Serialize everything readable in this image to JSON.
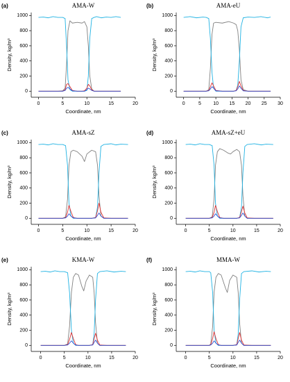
{
  "chart_data": [
    {
      "type": "line",
      "label": "(a)",
      "title": "AMA-W",
      "xlabel": "Coordinate, nm",
      "ylabel": "Density, kg/m³",
      "xlim": [
        -1.5,
        20
      ],
      "xticks": [
        0,
        5,
        10,
        15,
        20
      ],
      "ylim": [
        -80,
        1040
      ],
      "yticks": [
        0,
        200,
        400,
        600,
        800,
        1000
      ],
      "x": [
        0,
        1,
        2,
        3,
        4,
        5,
        5.5,
        5.8,
        6.1,
        6.5,
        7,
        8,
        9,
        9.5,
        10,
        10.3,
        10.6,
        11,
        11.5,
        12,
        13,
        14,
        15,
        16,
        17
      ],
      "series": [
        {
          "color": "#808080",
          "values": [
            0,
            0,
            0,
            0,
            0,
            5,
            40,
            350,
            800,
            930,
            900,
            910,
            900,
            920,
            850,
            600,
            200,
            30,
            0,
            0,
            0,
            0,
            0,
            0,
            0
          ]
        },
        {
          "color": "#1fb2e3",
          "values": [
            975,
            980,
            970,
            985,
            975,
            975,
            960,
            600,
            150,
            20,
            0,
            0,
            0,
            0,
            10,
            200,
            700,
            960,
            975,
            985,
            970,
            980,
            975,
            985,
            975
          ]
        },
        {
          "color": "#e03030",
          "values": [
            0,
            0,
            0,
            0,
            0,
            0,
            20,
            90,
            100,
            60,
            10,
            0,
            0,
            5,
            40,
            90,
            70,
            20,
            0,
            0,
            0,
            0,
            0,
            0,
            0
          ]
        },
        {
          "color": "#3050d0",
          "values": [
            0,
            0,
            0,
            0,
            0,
            0,
            10,
            40,
            50,
            30,
            5,
            0,
            0,
            0,
            20,
            40,
            30,
            10,
            0,
            0,
            0,
            0,
            0,
            0,
            0
          ]
        }
      ]
    },
    {
      "type": "line",
      "label": "(b)",
      "title": "AMA-eU",
      "xlabel": "Coordinate, nm",
      "ylabel": "Density, kg/m³",
      "xlim": [
        -2.3,
        30
      ],
      "xticks": [
        0,
        5,
        10,
        15,
        20,
        25,
        30
      ],
      "ylim": [
        -80,
        1040
      ],
      "yticks": [
        0,
        200,
        400,
        600,
        800,
        1000
      ],
      "x": [
        0,
        2,
        4,
        6,
        7,
        7.8,
        8.3,
        8.8,
        9.3,
        10,
        12,
        14,
        15.5,
        16.3,
        16.8,
        17.3,
        17.8,
        18.5,
        20,
        22,
        24,
        26,
        27
      ],
      "series": [
        {
          "color": "#808080",
          "values": [
            0,
            0,
            0,
            0,
            0,
            20,
            300,
            750,
            900,
            910,
            900,
            920,
            900,
            880,
            800,
            550,
            150,
            20,
            0,
            0,
            0,
            0,
            0
          ]
        },
        {
          "color": "#1fb2e3",
          "values": [
            975,
            985,
            970,
            980,
            975,
            960,
            700,
            250,
            40,
            0,
            0,
            0,
            0,
            10,
            80,
            400,
            850,
            970,
            980,
            975,
            985,
            970,
            980
          ]
        },
        {
          "color": "#e03030",
          "values": [
            0,
            0,
            0,
            0,
            0,
            10,
            60,
            110,
            70,
            10,
            0,
            0,
            0,
            10,
            60,
            130,
            70,
            10,
            0,
            0,
            0,
            0,
            0
          ]
        },
        {
          "color": "#3050d0",
          "values": [
            0,
            0,
            0,
            0,
            0,
            5,
            30,
            60,
            40,
            5,
            0,
            0,
            0,
            5,
            30,
            70,
            40,
            5,
            0,
            0,
            0,
            0,
            0
          ]
        }
      ]
    },
    {
      "type": "line",
      "label": "(c)",
      "title": "AMA-sZ",
      "xlabel": "Coordinate, nm",
      "ylabel": "Density, kg/m³",
      "xlim": [
        -1.5,
        20
      ],
      "xticks": [
        0,
        5,
        10,
        15,
        20
      ],
      "ylim": [
        -80,
        1040
      ],
      "yticks": [
        0,
        200,
        400,
        600,
        800,
        1000
      ],
      "x": [
        0,
        1,
        2,
        3,
        4,
        5,
        5.6,
        6.0,
        6.3,
        6.7,
        7.2,
        8,
        9,
        9.5,
        10,
        11,
        11.8,
        12.2,
        12.5,
        12.9,
        13.5,
        15,
        16,
        17,
        18.5
      ],
      "series": [
        {
          "color": "#808080",
          "values": [
            0,
            0,
            0,
            0,
            0,
            0,
            20,
            250,
            700,
            880,
            900,
            880,
            820,
            750,
            850,
            900,
            880,
            700,
            300,
            30,
            0,
            0,
            0,
            0,
            0
          ]
        },
        {
          "color": "#1fb2e3",
          "values": [
            975,
            980,
            970,
            985,
            975,
            975,
            960,
            700,
            200,
            30,
            0,
            0,
            0,
            0,
            0,
            0,
            10,
            150,
            600,
            950,
            975,
            985,
            970,
            980,
            975
          ]
        },
        {
          "color": "#e03030",
          "values": [
            0,
            0,
            0,
            0,
            0,
            0,
            10,
            80,
            170,
            90,
            10,
            0,
            0,
            0,
            0,
            0,
            10,
            100,
            200,
            80,
            5,
            0,
            0,
            0,
            0
          ]
        },
        {
          "color": "#3050d0",
          "values": [
            0,
            0,
            0,
            0,
            0,
            0,
            5,
            30,
            60,
            30,
            5,
            0,
            0,
            0,
            0,
            0,
            5,
            40,
            70,
            30,
            0,
            0,
            0,
            0,
            0
          ]
        }
      ]
    },
    {
      "type": "line",
      "label": "(d)",
      "title": "AMA-sZ+eU",
      "xlabel": "Coordinate, nm",
      "ylabel": "Density, kg/m³",
      "xlim": [
        -2,
        20
      ],
      "xticks": [
        0,
        5,
        10,
        15,
        20
      ],
      "ylim": [
        -80,
        1040
      ],
      "yticks": [
        0,
        200,
        400,
        600,
        800,
        1000
      ],
      "x": [
        0,
        1,
        2,
        3,
        4,
        5,
        5.6,
        6.0,
        6.3,
        6.7,
        7.2,
        8,
        9,
        9.5,
        10,
        10.8,
        11.4,
        11.8,
        12.1,
        12.5,
        13,
        14.5,
        16,
        17,
        18.5
      ],
      "series": [
        {
          "color": "#808080",
          "values": [
            0,
            0,
            0,
            0,
            0,
            0,
            20,
            250,
            700,
            880,
            920,
            900,
            860,
            850,
            880,
            910,
            880,
            700,
            300,
            30,
            0,
            0,
            0,
            0,
            0
          ]
        },
        {
          "color": "#1fb2e3",
          "values": [
            975,
            980,
            970,
            985,
            975,
            975,
            960,
            700,
            200,
            30,
            0,
            0,
            0,
            0,
            0,
            0,
            10,
            150,
            600,
            950,
            975,
            985,
            970,
            980,
            975
          ]
        },
        {
          "color": "#e03030",
          "values": [
            0,
            0,
            0,
            0,
            0,
            0,
            10,
            80,
            170,
            90,
            10,
            0,
            0,
            0,
            0,
            0,
            10,
            90,
            160,
            70,
            5,
            0,
            0,
            0,
            0
          ]
        },
        {
          "color": "#3050d0",
          "values": [
            0,
            0,
            0,
            0,
            0,
            0,
            5,
            30,
            60,
            30,
            5,
            0,
            0,
            0,
            0,
            0,
            5,
            40,
            70,
            30,
            0,
            0,
            0,
            0,
            0
          ]
        }
      ]
    },
    {
      "type": "line",
      "label": "(e)",
      "title": "KMA-W",
      "xlabel": "Coordinate, nm",
      "ylabel": "Density, kg/m³",
      "xlim": [
        -2,
        20
      ],
      "xticks": [
        0,
        5,
        10,
        15,
        20
      ],
      "ylim": [
        -80,
        1040
      ],
      "yticks": [
        0,
        200,
        400,
        600,
        800,
        1000
      ],
      "x": [
        0,
        1,
        2,
        3,
        4,
        5,
        5.7,
        6.1,
        6.5,
        6.9,
        7.4,
        8,
        8.7,
        9.1,
        9.6,
        10.3,
        11,
        11.3,
        11.6,
        12,
        12.5,
        14,
        15.5,
        17,
        18
      ],
      "series": [
        {
          "color": "#808080",
          "values": [
            0,
            0,
            0,
            0,
            0,
            0,
            20,
            250,
            700,
            900,
            950,
            930,
            780,
            720,
            850,
            930,
            900,
            700,
            300,
            30,
            0,
            0,
            0,
            0,
            0
          ]
        },
        {
          "color": "#1fb2e3",
          "values": [
            975,
            980,
            970,
            985,
            975,
            975,
            960,
            700,
            200,
            30,
            0,
            0,
            0,
            0,
            0,
            0,
            10,
            150,
            600,
            950,
            975,
            985,
            970,
            980,
            975
          ]
        },
        {
          "color": "#e03030",
          "values": [
            0,
            0,
            0,
            0,
            0,
            0,
            10,
            80,
            170,
            90,
            10,
            0,
            0,
            0,
            0,
            0,
            10,
            90,
            160,
            70,
            5,
            0,
            0,
            0,
            0
          ]
        },
        {
          "color": "#3050d0",
          "values": [
            0,
            0,
            0,
            0,
            0,
            0,
            5,
            30,
            60,
            30,
            5,
            0,
            0,
            0,
            0,
            0,
            5,
            40,
            70,
            30,
            0,
            0,
            0,
            0,
            0
          ]
        }
      ]
    },
    {
      "type": "line",
      "label": "(f)",
      "title": "MMA-W",
      "xlabel": "Coordinate, nm",
      "ylabel": "Density, kg/m³",
      "xlim": [
        -2,
        20
      ],
      "xticks": [
        0,
        5,
        10,
        15,
        20
      ],
      "ylim": [
        -80,
        1040
      ],
      "yticks": [
        0,
        200,
        400,
        600,
        800,
        1000
      ],
      "x": [
        0,
        1,
        2,
        3,
        4,
        5,
        5.3,
        5.7,
        6.0,
        6.4,
        6.9,
        7.5,
        8.4,
        8.8,
        9.3,
        10,
        10.8,
        11.1,
        11.4,
        11.8,
        12.3,
        14,
        15.5,
        17,
        18
      ],
      "series": [
        {
          "color": "#808080",
          "values": [
            0,
            0,
            0,
            0,
            0,
            0,
            20,
            250,
            700,
            900,
            950,
            930,
            760,
            700,
            860,
            930,
            900,
            700,
            300,
            30,
            0,
            0,
            0,
            0,
            0
          ]
        },
        {
          "color": "#1fb2e3",
          "values": [
            975,
            980,
            970,
            985,
            975,
            975,
            960,
            700,
            200,
            30,
            0,
            0,
            0,
            0,
            0,
            0,
            10,
            150,
            600,
            950,
            975,
            985,
            970,
            980,
            975
          ]
        },
        {
          "color": "#e03030",
          "values": [
            0,
            0,
            0,
            0,
            0,
            0,
            10,
            90,
            180,
            90,
            10,
            0,
            0,
            0,
            0,
            0,
            10,
            90,
            170,
            70,
            5,
            0,
            0,
            0,
            0
          ]
        },
        {
          "color": "#3050d0",
          "values": [
            0,
            0,
            0,
            0,
            0,
            0,
            5,
            30,
            60,
            30,
            5,
            0,
            0,
            0,
            0,
            0,
            5,
            40,
            70,
            30,
            0,
            0,
            0,
            0,
            0
          ]
        }
      ]
    }
  ]
}
